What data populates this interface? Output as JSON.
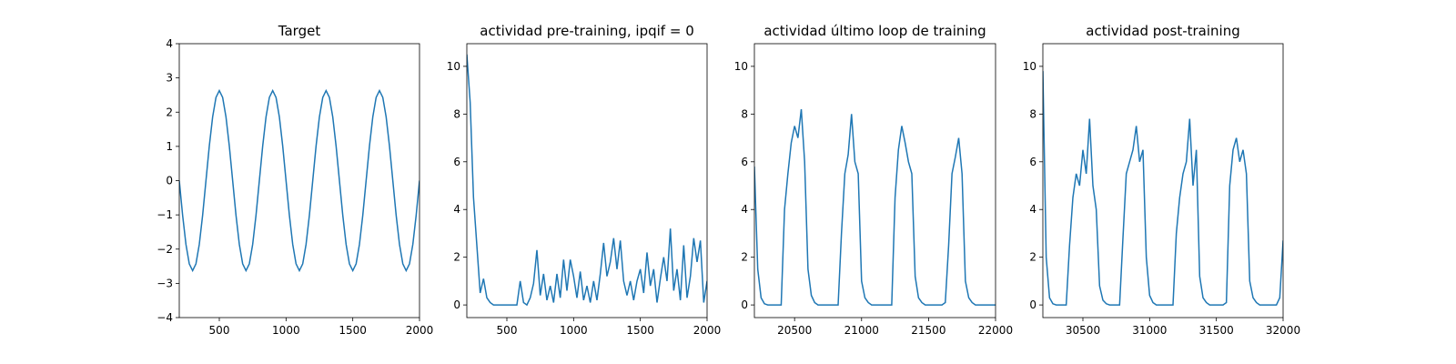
{
  "chart_data": [
    {
      "type": "line",
      "title": "Target",
      "color": "#1f77b4",
      "x": [
        200,
        225,
        250,
        275,
        300,
        325,
        350,
        375,
        400,
        425,
        450,
        475,
        500,
        525,
        550,
        575,
        600,
        625,
        650,
        675,
        700,
        725,
        750,
        775,
        800,
        825,
        850,
        875,
        900,
        925,
        950,
        975,
        1000,
        1025,
        1050,
        1075,
        1100,
        1125,
        1150,
        1175,
        1200,
        1225,
        1250,
        1275,
        1300,
        1325,
        1350,
        1375,
        1400,
        1425,
        1450,
        1475,
        1500,
        1525,
        1550,
        1575,
        1600,
        1625,
        1650,
        1675,
        1700,
        1725,
        1750,
        1775,
        1800,
        1825,
        1850,
        1875,
        1900,
        1925,
        1950,
        1975,
        2000
      ],
      "values": [
        0,
        -1.01,
        -1.86,
        -2.43,
        -2.63,
        -2.43,
        -1.86,
        -1.01,
        0,
        1.01,
        1.86,
        2.43,
        2.63,
        2.43,
        1.86,
        1.01,
        0,
        -1.01,
        -1.86,
        -2.43,
        -2.63,
        -2.43,
        -1.86,
        -1.01,
        0,
        1.01,
        1.86,
        2.43,
        2.63,
        2.43,
        1.86,
        1.01,
        0,
        -1.01,
        -1.86,
        -2.43,
        -2.63,
        -2.43,
        -1.86,
        -1.01,
        0,
        1.01,
        1.86,
        2.43,
        2.63,
        2.43,
        1.86,
        1.01,
        0,
        -1.01,
        -1.86,
        -2.43,
        -2.63,
        -2.43,
        -1.86,
        -1.01,
        0,
        1.01,
        1.86,
        2.43,
        2.63,
        2.43,
        1.86,
        1.01,
        0,
        -1.01,
        -1.86,
        -2.43,
        -2.63,
        -2.43,
        -1.86,
        -1.01,
        0
      ],
      "xlim": [
        200,
        2000
      ],
      "xticks": [
        500,
        1000,
        1500,
        2000
      ],
      "ylim": [
        -4,
        4
      ],
      "yticks": [
        {
          "value": -4,
          "label": "−4"
        },
        {
          "value": -3,
          "label": "−3"
        },
        {
          "value": -2,
          "label": "−2"
        },
        {
          "value": -1,
          "label": "−1"
        },
        0,
        1,
        2,
        3,
        4
      ]
    },
    {
      "type": "line",
      "title": "actividad pre-training, ipqif = 0",
      "color": "#1f77b4",
      "x": [
        200,
        225,
        250,
        275,
        300,
        325,
        350,
        375,
        400,
        425,
        450,
        475,
        500,
        525,
        550,
        575,
        600,
        625,
        650,
        675,
        700,
        725,
        750,
        775,
        800,
        825,
        850,
        875,
        900,
        925,
        950,
        975,
        1000,
        1025,
        1050,
        1075,
        1100,
        1125,
        1150,
        1175,
        1200,
        1225,
        1250,
        1275,
        1300,
        1325,
        1350,
        1375,
        1400,
        1425,
        1450,
        1475,
        1500,
        1525,
        1550,
        1575,
        1600,
        1625,
        1650,
        1675,
        1700,
        1725,
        1750,
        1775,
        1800,
        1825,
        1850,
        1875,
        1900,
        1925,
        1950,
        1975,
        2000
      ],
      "values": [
        10.5,
        8.5,
        4.5,
        2.5,
        0.5,
        1.1,
        0.3,
        0.1,
        0,
        0,
        0,
        0,
        0,
        0,
        0,
        0,
        1.0,
        0.1,
        0,
        0.3,
        0.9,
        2.3,
        0.4,
        1.3,
        0.2,
        0.8,
        0.1,
        1.3,
        0.3,
        1.9,
        0.6,
        1.9,
        1.2,
        0.3,
        1.4,
        0.2,
        0.8,
        0.1,
        1.0,
        0.2,
        1.3,
        2.6,
        1.2,
        1.8,
        2.8,
        1.5,
        2.7,
        1.0,
        0.4,
        1.0,
        0.2,
        1.0,
        1.5,
        0.5,
        2.2,
        0.8,
        1.5,
        0.1,
        1.1,
        2.0,
        1.0,
        3.2,
        0.6,
        1.5,
        0.2,
        2.5,
        0.3,
        1.2,
        2.8,
        1.8,
        2.7,
        0.1,
        1.0
      ],
      "xlim": [
        200,
        2000
      ],
      "xticks": [
        500,
        1000,
        1500,
        2000
      ],
      "ylim": [
        -0.53,
        10.95
      ],
      "yticks": [
        0,
        2,
        4,
        6,
        8,
        10
      ]
    },
    {
      "type": "line",
      "title": "actividad último loop de training",
      "color": "#1f77b4",
      "x": [
        20200,
        20225,
        20250,
        20275,
        20300,
        20325,
        20350,
        20375,
        20400,
        20425,
        20450,
        20475,
        20500,
        20525,
        20550,
        20575,
        20600,
        20625,
        20650,
        20675,
        20700,
        20725,
        20750,
        20775,
        20800,
        20825,
        20850,
        20875,
        20900,
        20925,
        20950,
        20975,
        21000,
        21025,
        21050,
        21075,
        21100,
        21125,
        21150,
        21175,
        21200,
        21225,
        21250,
        21275,
        21300,
        21325,
        21350,
        21375,
        21400,
        21425,
        21450,
        21475,
        21500,
        21525,
        21550,
        21575,
        21600,
        21625,
        21650,
        21675,
        21700,
        21725,
        21750,
        21775,
        21800,
        21825,
        21850,
        21875,
        21900,
        21925,
        21950,
        21975,
        22000
      ],
      "values": [
        5.8,
        1.5,
        0.3,
        0.05,
        0,
        0,
        0,
        0,
        0,
        4.0,
        5.5,
        6.8,
        7.5,
        7.0,
        8.2,
        6.0,
        1.5,
        0.4,
        0.1,
        0,
        0,
        0,
        0,
        0,
        0,
        0,
        3.0,
        5.5,
        6.3,
        8.0,
        6.0,
        5.5,
        1.0,
        0.3,
        0.1,
        0,
        0,
        0,
        0,
        0,
        0,
        0,
        4.5,
        6.5,
        7.5,
        6.8,
        6.0,
        5.5,
        1.2,
        0.3,
        0.1,
        0,
        0,
        0,
        0,
        0,
        0,
        0.1,
        2.5,
        5.5,
        6.2,
        7.0,
        5.5,
        1.0,
        0.3,
        0.1,
        0,
        0,
        0,
        0,
        0,
        0,
        0
      ],
      "xlim": [
        20200,
        22000
      ],
      "xticks": [
        20500,
        21000,
        21500,
        22000
      ],
      "ylim": [
        -0.53,
        10.95
      ],
      "yticks": [
        0,
        2,
        4,
        6,
        8,
        10
      ]
    },
    {
      "type": "line",
      "title": "actividad post-training",
      "color": "#1f77b4",
      "x": [
        30200,
        30225,
        30250,
        30275,
        30300,
        30325,
        30350,
        30375,
        30400,
        30425,
        30450,
        30475,
        30500,
        30525,
        30550,
        30575,
        30600,
        30625,
        30650,
        30675,
        30700,
        30725,
        30750,
        30775,
        30800,
        30825,
        30850,
        30875,
        30900,
        30925,
        30950,
        30975,
        31000,
        31025,
        31050,
        31075,
        31100,
        31125,
        31150,
        31175,
        31200,
        31225,
        31250,
        31275,
        31300,
        31325,
        31350,
        31375,
        31400,
        31425,
        31450,
        31475,
        31500,
        31525,
        31550,
        31575,
        31600,
        31625,
        31650,
        31675,
        31700,
        31725,
        31750,
        31775,
        31800,
        31825,
        31850,
        31875,
        31900,
        31925,
        31950,
        31975,
        32000
      ],
      "values": [
        9.8,
        2.0,
        0.3,
        0.05,
        0,
        0,
        0,
        0,
        2.5,
        4.5,
        5.5,
        5.0,
        6.5,
        5.5,
        7.8,
        5.0,
        4.0,
        0.8,
        0.2,
        0.05,
        0,
        0,
        0,
        0,
        2.8,
        5.5,
        6.0,
        6.5,
        7.5,
        6.0,
        6.5,
        2.0,
        0.4,
        0.1,
        0,
        0,
        0,
        0,
        0,
        0,
        3.0,
        4.5,
        5.5,
        6.0,
        7.8,
        5.0,
        6.5,
        1.2,
        0.3,
        0.1,
        0,
        0,
        0,
        0,
        0,
        0.1,
        5.0,
        6.5,
        7.0,
        6.0,
        6.5,
        5.5,
        1.0,
        0.3,
        0.1,
        0,
        0,
        0,
        0,
        0,
        0,
        0.3,
        2.7
      ],
      "xlim": [
        30200,
        32000
      ],
      "xticks": [
        30500,
        31000,
        31500,
        32000
      ],
      "ylim": [
        -0.53,
        10.95
      ],
      "yticks": [
        0,
        2,
        4,
        6,
        8,
        10
      ]
    }
  ]
}
